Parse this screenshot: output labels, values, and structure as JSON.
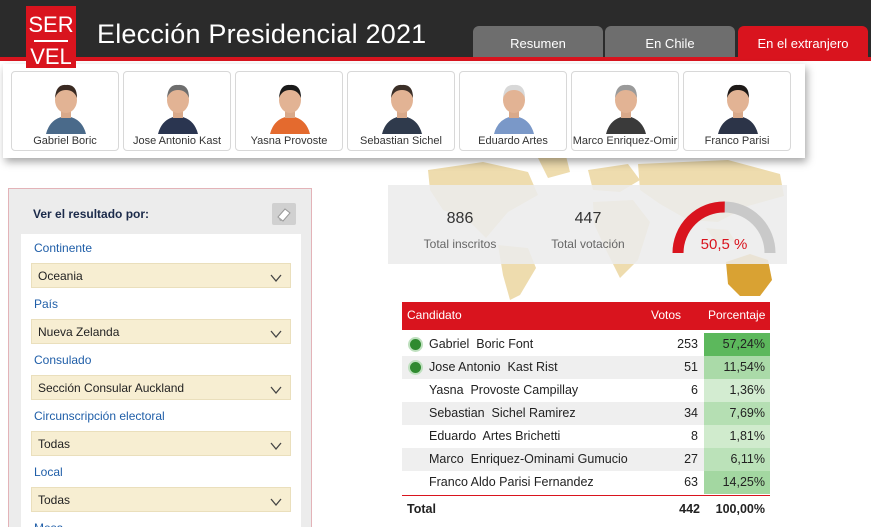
{
  "header": {
    "logo_text_top": "SER",
    "logo_text_bottom": "VEL",
    "title": "Elección Presidencial 2021",
    "tabs": [
      {
        "label": "Resumen"
      },
      {
        "label": "En Chile"
      },
      {
        "label": "En el extranjero"
      }
    ],
    "active_tab": "En el extranjero"
  },
  "candidates": [
    {
      "name": "Gabriel Boric",
      "hair": "#3a2a22",
      "shirt": "#4a6a8a"
    },
    {
      "name": "Jose Antonio Kast",
      "hair": "#6e6e6e",
      "shirt": "#2a3550"
    },
    {
      "name": "Yasna Provoste",
      "hair": "#1a1a1a",
      "shirt": "#e46a2e"
    },
    {
      "name": "Sebastian Sichel",
      "hair": "#3b2f28",
      "shirt": "#2f3a4c"
    },
    {
      "name": "Eduardo Artes",
      "hair": "#d8d8d8",
      "shirt": "#7a98c8"
    },
    {
      "name": "Marco Enriquez-Omir",
      "hair": "#9a9a9a",
      "shirt": "#3a3a3a"
    },
    {
      "name": "Franco Parisi",
      "hair": "#1e1a18",
      "shirt": "#2c3448"
    }
  ],
  "filters": {
    "heading": "Ver el resultado por:",
    "items": [
      {
        "label": "Continente",
        "value": "Oceania"
      },
      {
        "label": "País",
        "value": "Nueva Zelanda"
      },
      {
        "label": "Consulado",
        "value": "Sección Consular Auckland"
      },
      {
        "label": "Circunscripción electoral",
        "value": "Todas"
      },
      {
        "label": "Local",
        "value": "Todas"
      },
      {
        "label": "Mesa",
        "value": ""
      }
    ]
  },
  "stats": {
    "inscritos_value": "886",
    "inscritos_label": "Total inscritos",
    "votacion_value": "447",
    "votacion_label": "Total votación",
    "participation_label": "50,5 %",
    "participation_fraction": 0.505
  },
  "table": {
    "headers": {
      "candidate": "Candidato",
      "votes": "Votos",
      "percent": "Porcentaje"
    },
    "rows": [
      {
        "name": "Gabriel  Boric Font",
        "votes": "253",
        "percent": "57,24%",
        "pct": 57.24,
        "winner_dot": true
      },
      {
        "name": "Jose Antonio  Kast Rist",
        "votes": "51",
        "percent": "11,54%",
        "pct": 11.54,
        "winner_dot": true
      },
      {
        "name": "Yasna  Provoste Campillay",
        "votes": "6",
        "percent": "1,36%",
        "pct": 1.36,
        "winner_dot": false
      },
      {
        "name": "Sebastian  Sichel Ramirez",
        "votes": "34",
        "percent": "7,69%",
        "pct": 7.69,
        "winner_dot": false
      },
      {
        "name": "Eduardo  Artes Brichetti",
        "votes": "8",
        "percent": "1,81%",
        "pct": 1.81,
        "winner_dot": false
      },
      {
        "name": "Marco  Enriquez-Ominami Gumucio",
        "votes": "27",
        "percent": "6,11%",
        "pct": 6.11,
        "winner_dot": false
      },
      {
        "name": "Franco Aldo Parisi Fernandez",
        "votes": "63",
        "percent": "14,25%",
        "pct": 14.25,
        "winner_dot": false
      }
    ],
    "footer": {
      "label": "Total",
      "votes": "442",
      "percent": "100,00%"
    }
  },
  "colors": {
    "brand_red": "#d9141e",
    "header_dark": "#2b2b2b",
    "tab_gray": "#6e6e6e",
    "map_gold": "#e8d29a",
    "pct_green_strong": "#5cb85c",
    "pct_green_light": "#e9f6e6"
  }
}
